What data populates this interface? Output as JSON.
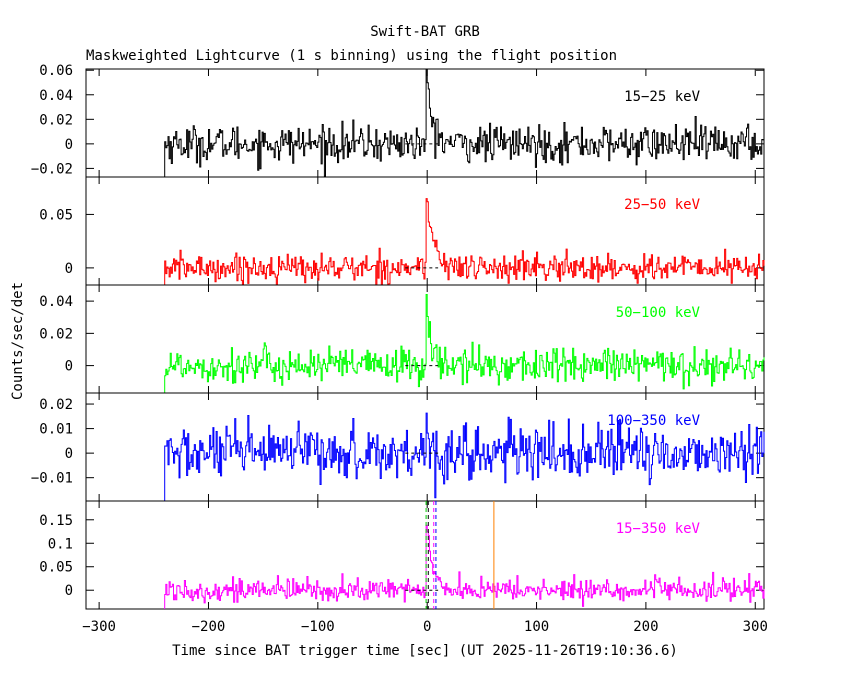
{
  "title": "Swift-BAT GRB",
  "subtitle": "Maskweighted Lightcurve (1 s binning) using the flight position",
  "chart_data": {
    "type": "line",
    "xlabel": "Time since BAT trigger time [sec] (UT 2025-11-26T19:10:36.6)",
    "ylabel": "Counts/sec/det",
    "xlim": [
      -312,
      308
    ],
    "x_ticks": [
      -300,
      -200,
      -100,
      0,
      100,
      200,
      300
    ],
    "x_tick_labels": [
      "−300",
      "−200",
      "−100",
      "0",
      "100",
      "200",
      "300"
    ],
    "data_start": -240,
    "data_end": 308,
    "trigger_time": 0,
    "vertical_lines": [
      {
        "x": -1,
        "color": "#00cc00",
        "style": "dashed"
      },
      {
        "x": 1,
        "color": "#000000",
        "style": "dashed"
      },
      {
        "x": 6,
        "color": "#ff00ff",
        "style": "dashed"
      },
      {
        "x": 8,
        "color": "#0000ff",
        "style": "dashed"
      },
      {
        "x": 61,
        "color": "#ff8000",
        "style": "solid"
      }
    ],
    "panels": [
      {
        "band": "15−25 keV",
        "color": "#000000",
        "ylim": [
          -0.027,
          0.061
        ],
        "y_ticks": [
          -0.02,
          0,
          0.02,
          0.04,
          0.06
        ],
        "y_tick_labels": [
          "−0.02",
          "0",
          "0.02",
          "0.04",
          "0.06"
        ],
        "noise_sigma": 0.0075,
        "peak": 0.055,
        "peak_decay_s": 5
      },
      {
        "band": "25−50 keV",
        "color": "#ff0000",
        "ylim": [
          -0.016,
          0.085
        ],
        "y_ticks": [
          0,
          0.05
        ],
        "y_tick_labels": [
          "0",
          "0.05"
        ],
        "noise_sigma": 0.0065,
        "peak": 0.07,
        "peak_decay_s": 6
      },
      {
        "band": "50−100 keV",
        "color": "#00ff00",
        "ylim": [
          -0.017,
          0.05
        ],
        "y_ticks": [
          0,
          0.02,
          0.04
        ],
        "y_tick_labels": [
          "0",
          "0.02",
          "0.04"
        ],
        "noise_sigma": 0.0055,
        "peak": 0.04,
        "peak_decay_s": 4
      },
      {
        "band": "100−350 keV",
        "color": "#0000ff",
        "ylim": [
          -0.0195,
          0.0245
        ],
        "y_ticks": [
          -0.01,
          0,
          0.01,
          0.02
        ],
        "y_tick_labels": [
          "−0.01",
          "0",
          "0.01",
          "0.02"
        ],
        "noise_sigma": 0.0055,
        "peak": 0.015,
        "peak_decay_s": 2
      },
      {
        "band": "15−350 keV",
        "color": "#ff00ff",
        "ylim": [
          -0.04,
          0.19
        ],
        "y_ticks": [
          0,
          0.05,
          0.1,
          0.15
        ],
        "y_tick_labels": [
          "0",
          "0.05",
          "0.1",
          "0.15"
        ],
        "noise_sigma": 0.012,
        "peak": 0.16,
        "peak_decay_s": 5
      }
    ]
  }
}
